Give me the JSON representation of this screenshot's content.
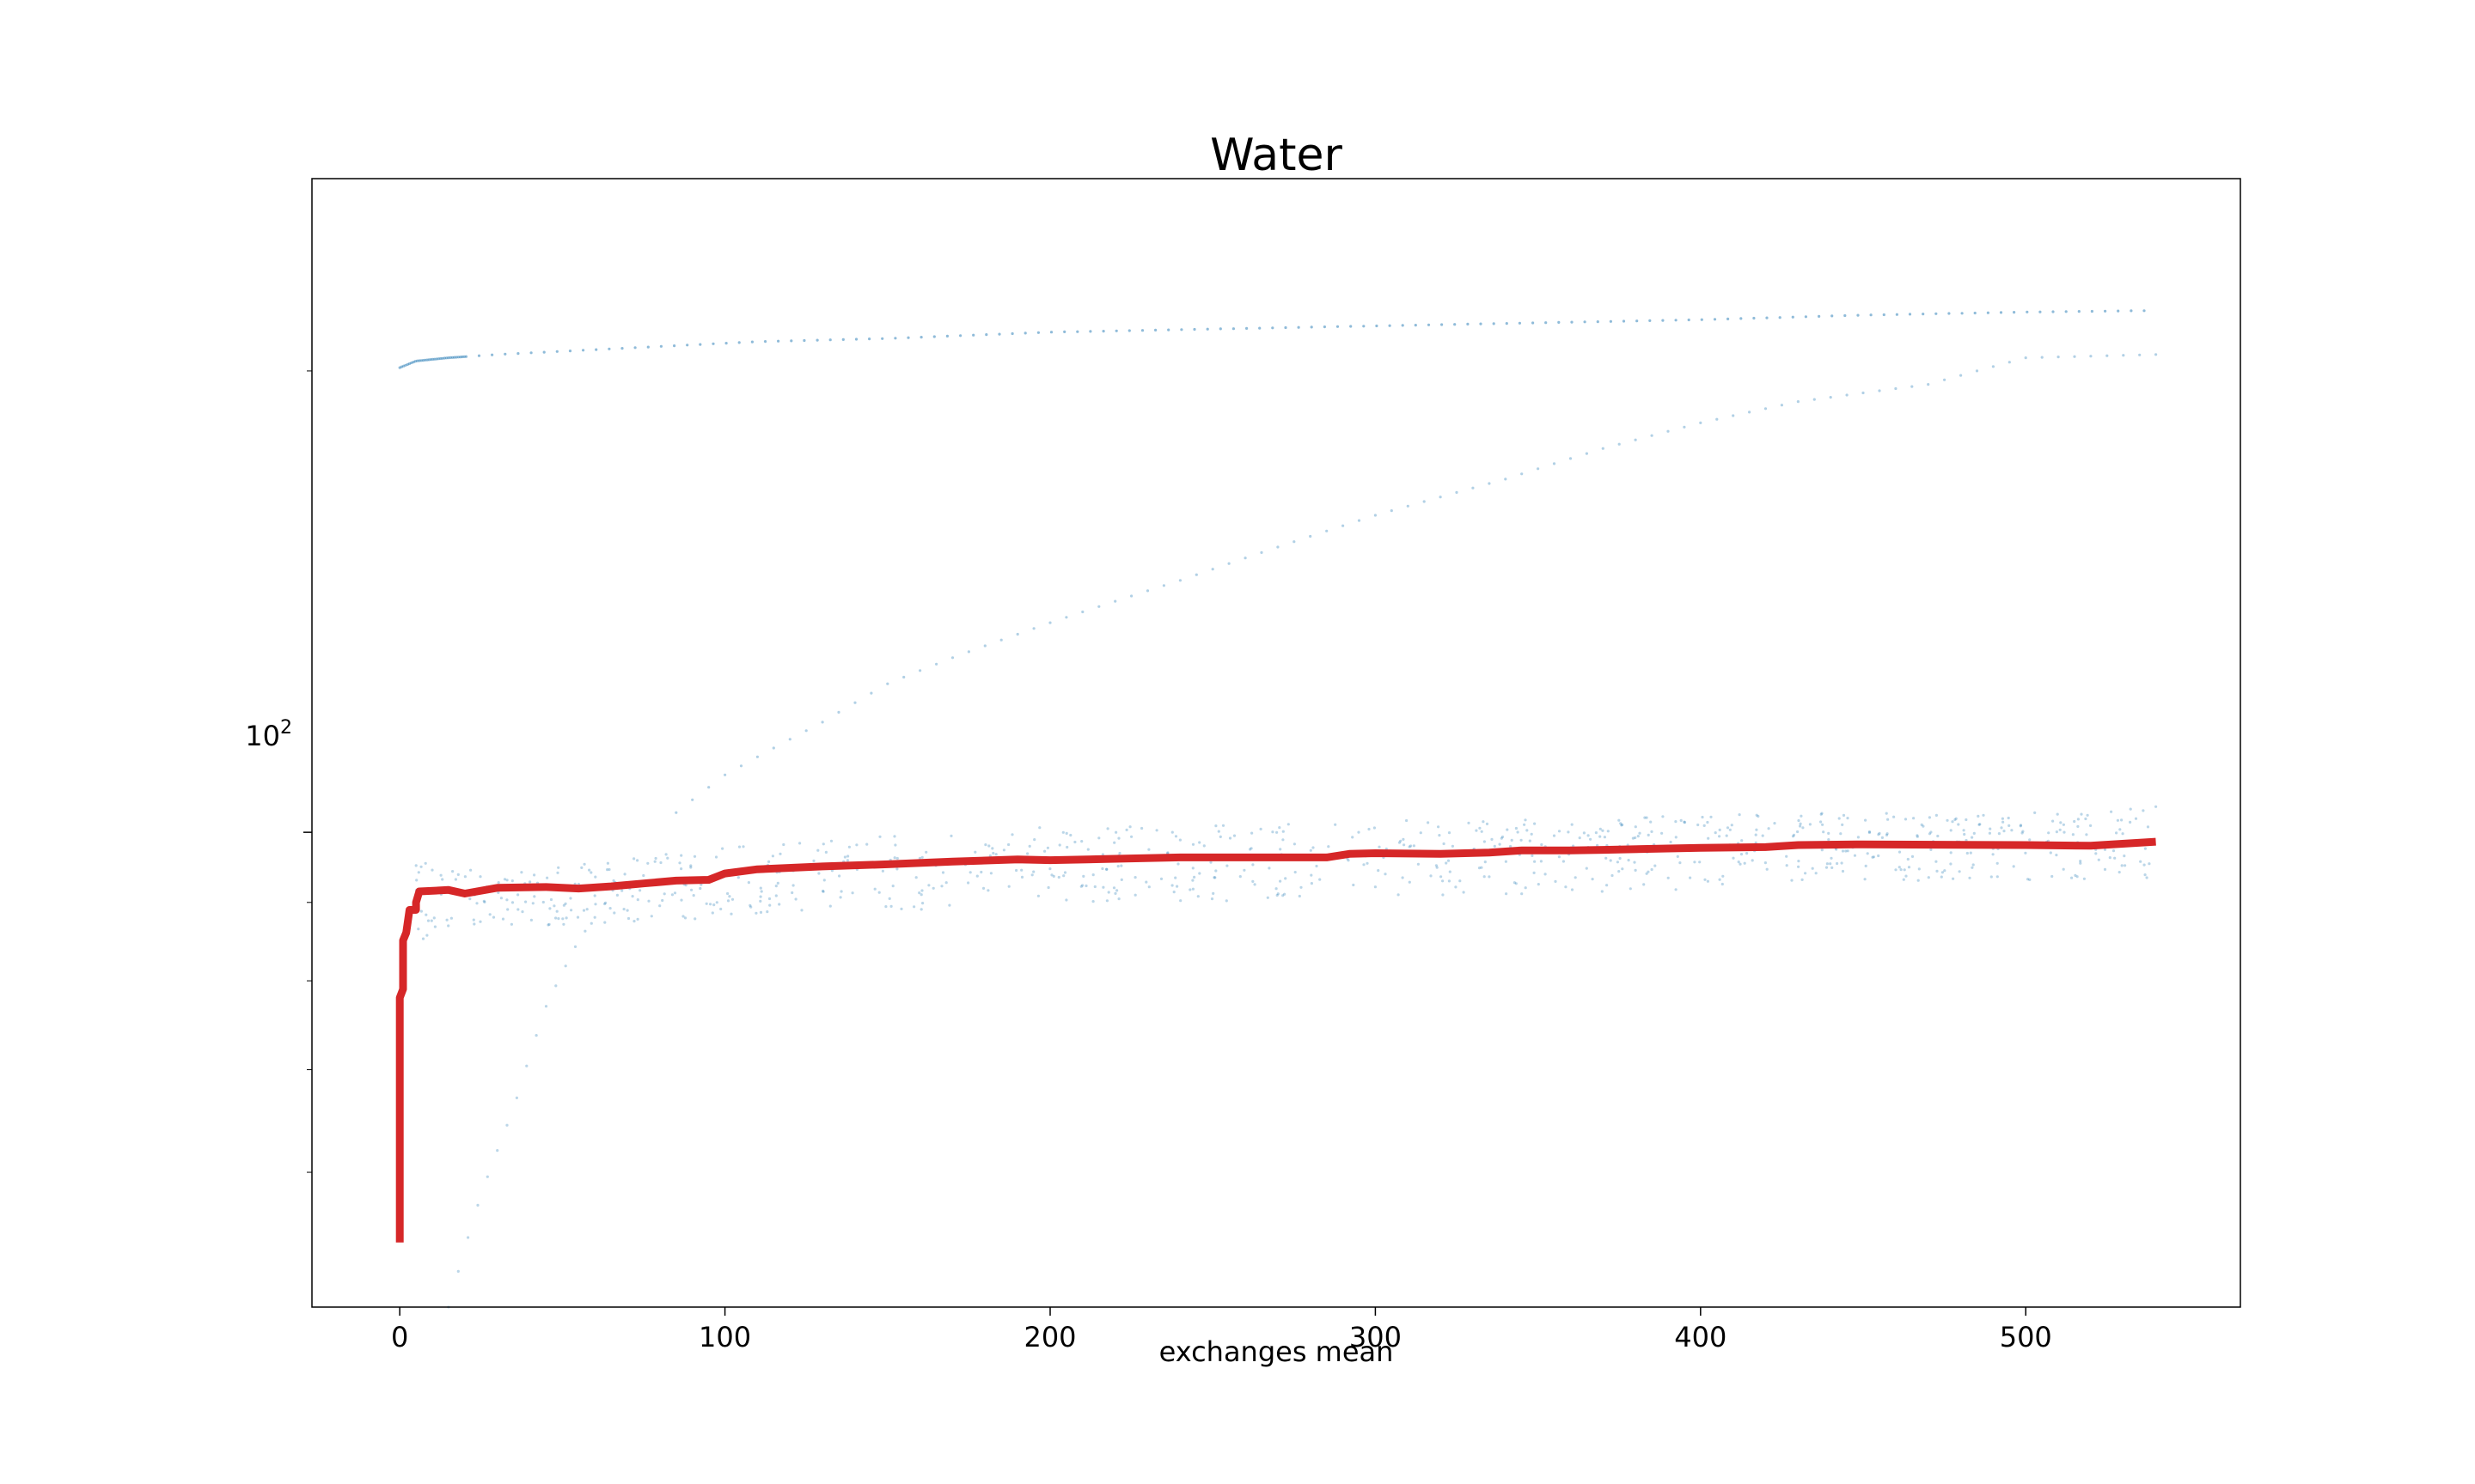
{
  "chart_data": {
    "type": "line",
    "title": "Water",
    "xlabel": "exchanges mean",
    "ylabel": "",
    "xlim": [
      -27,
      566
    ],
    "ylog": true,
    "ylim": [
      49,
      267
    ],
    "grid": false,
    "legend": "none",
    "x_ticks": [
      0,
      100,
      200,
      300,
      400,
      500
    ],
    "x_tick_labels": [
      "0",
      "100",
      "200",
      "300",
      "400",
      "500"
    ],
    "y_tick_base": "10",
    "y_tick_exp": "2",
    "y_major_tick": 100,
    "y_minor_ticks": [
      60,
      70,
      80,
      90,
      200
    ],
    "series": [
      {
        "kind": "line",
        "color": "#d62728",
        "points": [
          [
            0,
            54
          ],
          [
            0,
            78
          ],
          [
            1,
            79
          ],
          [
            1,
            85
          ],
          [
            2,
            86
          ],
          [
            3,
            89
          ],
          [
            5,
            89
          ],
          [
            5,
            90
          ],
          [
            6,
            91.5
          ],
          [
            15,
            91.7
          ],
          [
            20,
            91.2
          ],
          [
            30,
            92
          ],
          [
            45,
            92.1
          ],
          [
            55,
            91.9
          ],
          [
            65,
            92.2
          ],
          [
            75,
            92.6
          ],
          [
            85,
            93
          ],
          [
            95,
            93.1
          ],
          [
            100,
            94
          ],
          [
            110,
            94.6
          ],
          [
            130,
            95
          ],
          [
            150,
            95.3
          ],
          [
            170,
            95.7
          ],
          [
            190,
            96
          ],
          [
            200,
            95.9
          ],
          [
            220,
            96.1
          ],
          [
            240,
            96.3
          ],
          [
            260,
            96.3
          ],
          [
            285,
            96.3
          ],
          [
            292,
            96.8
          ],
          [
            300,
            96.9
          ],
          [
            320,
            96.8
          ],
          [
            335,
            97
          ],
          [
            345,
            97.3
          ],
          [
            360,
            97.3
          ],
          [
            370,
            97.4
          ],
          [
            390,
            97.6
          ],
          [
            400,
            97.7
          ],
          [
            420,
            97.8
          ],
          [
            430,
            98.1
          ],
          [
            450,
            98.2
          ],
          [
            500,
            98.1
          ],
          [
            520,
            98
          ],
          [
            540,
            98.6
          ]
        ]
      },
      {
        "kind": "scatter",
        "color": "#1f77b4",
        "upper_curve": [
          [
            0,
            201
          ],
          [
            5,
            203
          ],
          [
            15,
            204
          ],
          [
            30,
            205
          ],
          [
            50,
            206
          ],
          [
            80,
            207.5
          ],
          [
            110,
            209
          ],
          [
            150,
            210
          ],
          [
            200,
            212
          ],
          [
            250,
            213
          ],
          [
            300,
            214
          ],
          [
            350,
            215
          ],
          [
            400,
            216
          ],
          [
            450,
            217.5
          ],
          [
            500,
            218.5
          ],
          [
            540,
            219
          ]
        ],
        "second_upper_curve": [
          [
            500,
            204
          ],
          [
            540,
            205
          ],
          [
            470,
            196
          ],
          [
            430,
            191
          ],
          [
            400,
            185
          ],
          [
            370,
            178
          ],
          [
            340,
            170
          ],
          [
            300,
            161
          ],
          [
            240,
            146
          ],
          [
            200,
            137
          ],
          [
            170,
            130
          ],
          [
            150,
            125
          ],
          [
            130,
            118
          ],
          [
            100,
            109
          ],
          [
            85,
            103
          ]
        ],
        "low_curve": [
          [
            15,
            49
          ],
          [
            25,
            58
          ],
          [
            35,
            66
          ],
          [
            45,
            77
          ],
          [
            55,
            85
          ],
          [
            65,
            91
          ]
        ],
        "cluster_band": [
          [
            5,
            85,
            96
          ],
          [
            20,
            86,
            95
          ],
          [
            40,
            87,
            95
          ],
          [
            60,
            87,
            96
          ],
          [
            80,
            87,
            97
          ],
          [
            100,
            88,
            98
          ],
          [
            130,
            89,
            99
          ],
          [
            160,
            89,
            100
          ],
          [
            190,
            90,
            101
          ],
          [
            220,
            90,
            101
          ],
          [
            245,
            90,
            101
          ],
          [
            290,
            91,
            102
          ],
          [
            340,
            91,
            102
          ],
          [
            370,
            91,
            102
          ],
          [
            400,
            92,
            103
          ],
          [
            430,
            93,
            103
          ],
          [
            470,
            93,
            103
          ],
          [
            520,
            93,
            103
          ],
          [
            540,
            93,
            104
          ]
        ]
      }
    ]
  }
}
